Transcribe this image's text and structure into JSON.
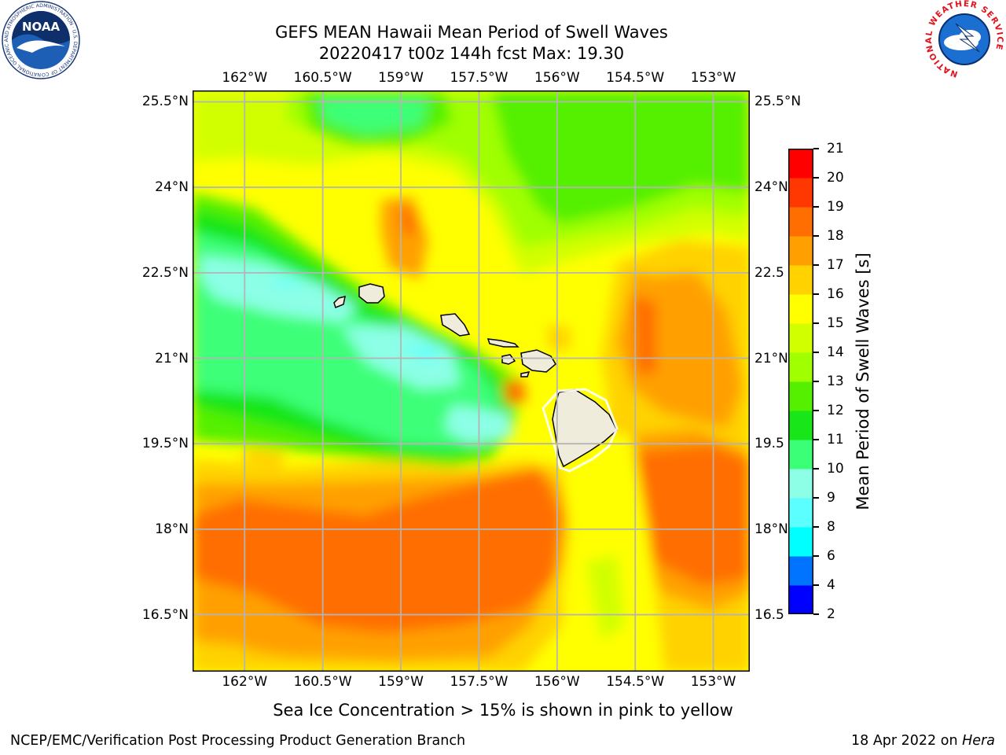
{
  "title": {
    "line1": "GEFS MEAN Hawaii Mean Period of Swell Waves",
    "line2": "20220417 t00z 144h fcst   Max: 19.30"
  },
  "map": {
    "lon_ticks": [
      "162°W",
      "160.5°W",
      "159°W",
      "157.5°W",
      "156°W",
      "154.5°W",
      "153°W"
    ],
    "lat_ticks_left": [
      "25.5°N",
      "24°N",
      "22.5°N",
      "21°N",
      "19.5°N",
      "18°N",
      "16.5°N"
    ],
    "lat_ticks_right": [
      "25.5°N",
      "24°N",
      "22.5",
      "21°N",
      "19.5",
      "18°N",
      "16.5"
    ],
    "lon_values": [
      -162,
      -160.5,
      -159,
      -157.5,
      -156,
      -154.5,
      -153
    ],
    "lat_values": [
      25.5,
      24,
      22.5,
      21,
      19.5,
      18,
      16.5
    ],
    "lon_range": [
      -163,
      -152.3
    ],
    "lat_range": [
      15.5,
      25.7
    ],
    "grid": true,
    "land_color": "#efecdc",
    "islands": [
      "Niihau",
      "Kauai",
      "Oahu",
      "Molokai",
      "Lanai",
      "Maui",
      "Kahoolawe",
      "Hawaii"
    ]
  },
  "colorbar": {
    "title": "Mean Period of Swell Waves [s]",
    "levels": [
      "2",
      "4",
      "6",
      "8",
      "9",
      "10",
      "11",
      "12",
      "13",
      "14",
      "15",
      "16",
      "17",
      "18",
      "19",
      "20",
      "21"
    ],
    "colors": [
      "#0000ff",
      "#0073ff",
      "#00ffff",
      "#5cffff",
      "#8cffe6",
      "#3cff78",
      "#19e619",
      "#55f000",
      "#a0ff00",
      "#d2ff00",
      "#ffff00",
      "#ffd200",
      "#ffa000",
      "#ff6e00",
      "#ff3700",
      "#ff0000"
    ]
  },
  "caption": "Sea Ice Concentration > 15% is shown in pink to yellow",
  "footer": {
    "credit": "NCEP/EMC/Verification Post Processing Product Generation Branch",
    "date": "18 Apr 2022 on",
    "host": "Hera"
  },
  "logos": {
    "noaa_text": "NOAA",
    "noaa_ring_text": "NATIONAL OCEANIC AND ATMOSPHERIC ADMINISTRATION · U.S. DEPARTMENT OF COMMERCE",
    "nws_ring_text": "NATIONAL WEATHER SERVICE"
  }
}
